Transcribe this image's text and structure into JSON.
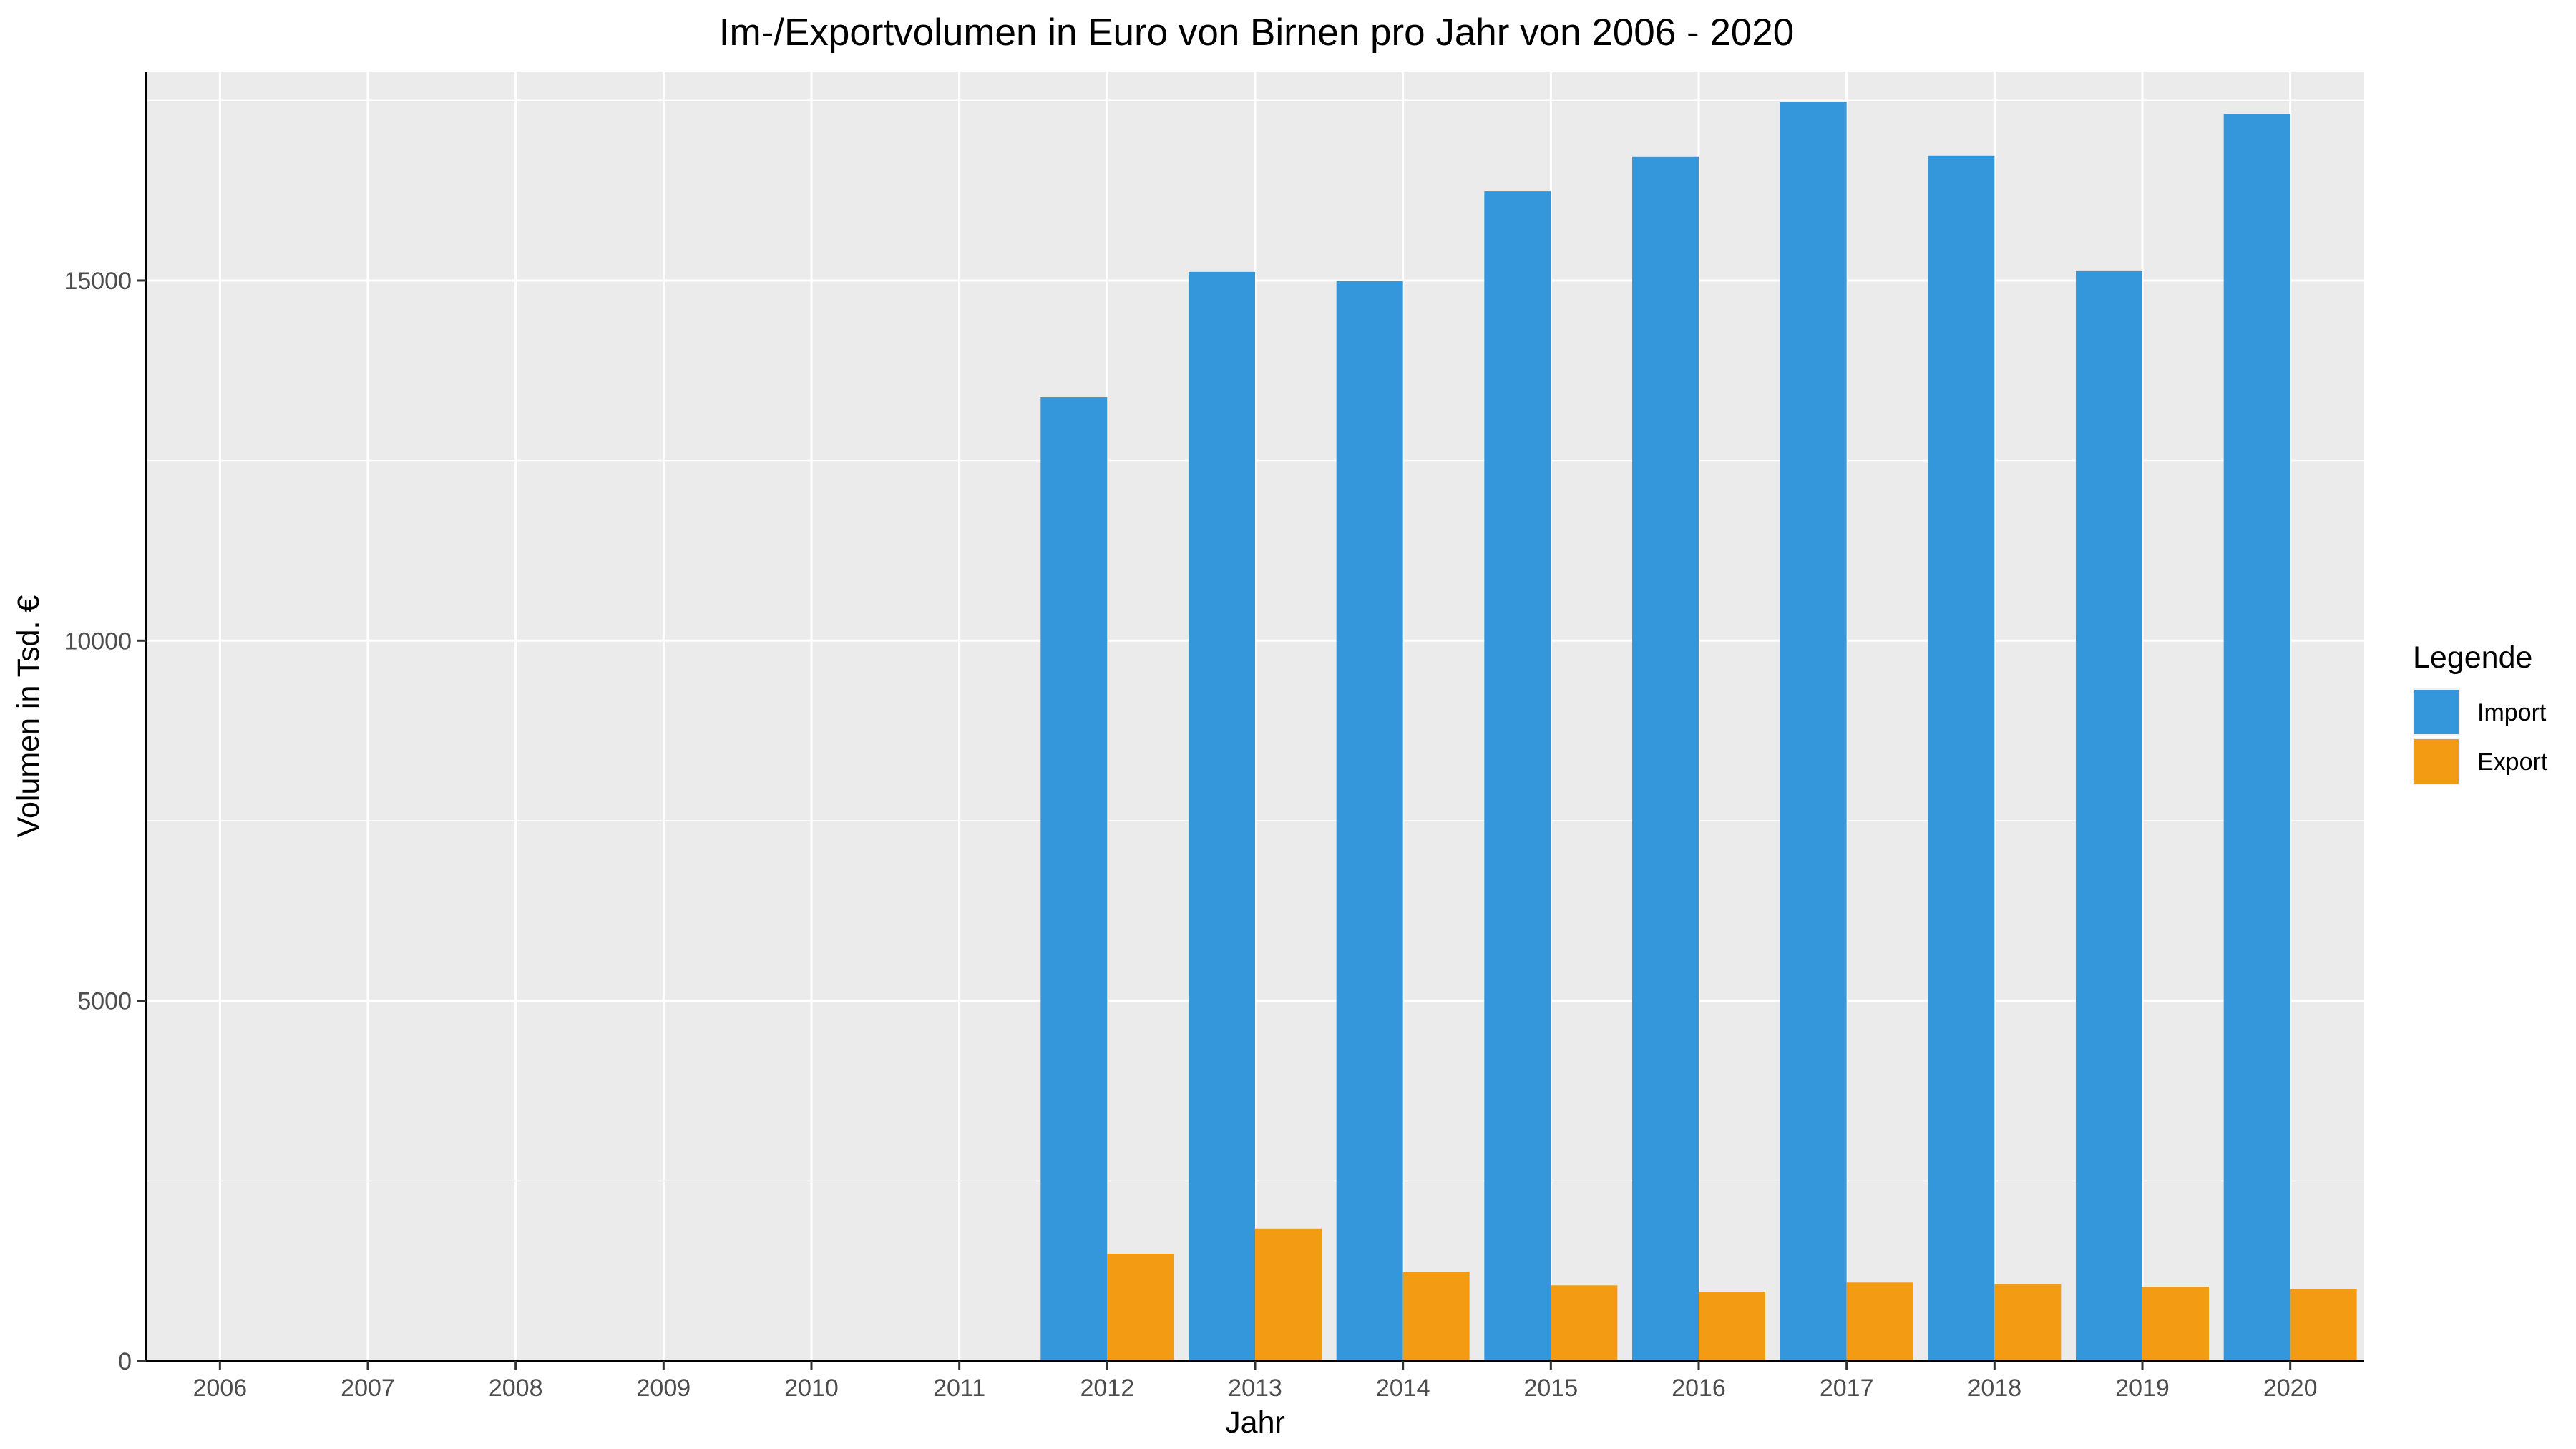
{
  "chart_data": {
    "type": "bar",
    "title": "Im-/Exportvolumen in Euro von Birnen pro Jahr von 2006 - 2020",
    "xlabel": "Jahr",
    "ylabel": "Volumen in Tsd. €",
    "categories": [
      "2006",
      "2007",
      "2008",
      "2009",
      "2010",
      "2011",
      "2012",
      "2013",
      "2014",
      "2015",
      "2016",
      "2017",
      "2018",
      "2019",
      "2020"
    ],
    "series": [
      {
        "name": "Import",
        "color": "#3597db",
        "values": [
          0,
          0,
          0,
          0,
          0,
          0,
          13380,
          15120,
          14990,
          16240,
          16720,
          17480,
          16730,
          15130,
          17310
        ]
      },
      {
        "name": "Export",
        "color": "#f39c13",
        "values": [
          0,
          0,
          0,
          0,
          0,
          0,
          1490,
          1840,
          1240,
          1050,
          960,
          1090,
          1070,
          1030,
          1000
        ]
      }
    ],
    "ylim": [
      0,
      17900
    ],
    "yticks": [
      0,
      5000,
      10000,
      15000
    ],
    "grid": true,
    "legend": {
      "title": "Legende",
      "position": "right"
    }
  }
}
